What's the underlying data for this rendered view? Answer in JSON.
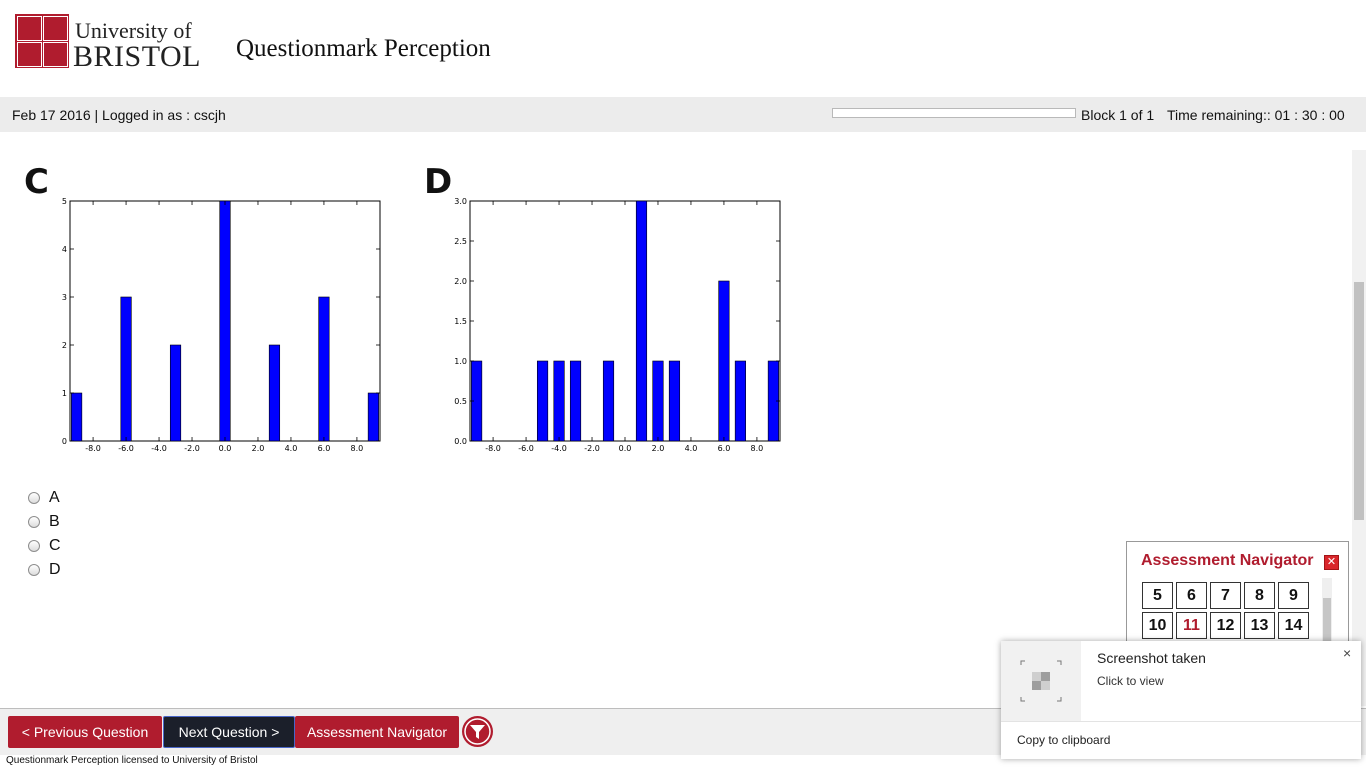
{
  "header": {
    "logo_line1": "University of",
    "logo_line2": "BRISTOL",
    "app_title": "Questionmark Perception"
  },
  "infobar": {
    "status": "Feb 17 2016 | Logged in as : cscjh",
    "progress_fraction": 0.0,
    "block": "Block 1 of 1",
    "time_remaining": "Time remaining:: 01 : 30 : 00"
  },
  "chart_data": [
    {
      "type": "bar",
      "label": "C",
      "x": [
        -9,
        -6,
        -3,
        0,
        3,
        6,
        9
      ],
      "values": [
        1,
        3,
        2,
        5,
        2,
        3,
        1
      ],
      "xlim": [
        -9.4,
        9.4
      ],
      "ylim": [
        0,
        5
      ],
      "xticks": [
        "-8.0",
        "-6.0",
        "-4.0",
        "-2.0",
        "0.0",
        "2.0",
        "4.0",
        "6.0",
        "8.0"
      ],
      "yticks": [
        "0",
        "1",
        "2",
        "3",
        "4",
        "5"
      ],
      "color": "#0000ff"
    },
    {
      "type": "bar",
      "label": "D",
      "x": [
        -9,
        -5,
        -4,
        -3,
        -1,
        1,
        2,
        3,
        6,
        7,
        9
      ],
      "values": [
        1,
        1,
        1,
        1,
        1,
        3,
        1,
        1,
        2,
        1,
        1
      ],
      "xlim": [
        -9.4,
        9.4
      ],
      "ylim": [
        0,
        3
      ],
      "xticks": [
        "-8.0",
        "-6.0",
        "-4.0",
        "-2.0",
        "0.0",
        "2.0",
        "4.0",
        "6.0",
        "8.0"
      ],
      "yticks": [
        "0.0",
        "0.5",
        "1.0",
        "1.5",
        "2.0",
        "2.5",
        "3.0"
      ],
      "color": "#0000ff"
    }
  ],
  "options": [
    "A",
    "B",
    "C",
    "D"
  ],
  "navigator": {
    "title": "Assessment Navigator",
    "close_glyph": "✕",
    "row1": [
      "5",
      "6",
      "7",
      "8",
      "9"
    ],
    "row2": [
      "10",
      "11",
      "12",
      "13",
      "14"
    ],
    "current": "11"
  },
  "footer": {
    "prev_label": "< Previous Question",
    "next_label": "Next Question >",
    "navigator_label": "Assessment Navigator",
    "license": "Questionmark Perception licensed to University of Bristol"
  },
  "toast": {
    "title": "Screenshot taken",
    "subtitle": "Click to view",
    "copy_label": "Copy to clipboard",
    "close_glyph": "×"
  },
  "colors": {
    "brand_red": "#b01c2e",
    "bar_blue": "#0000ff"
  }
}
